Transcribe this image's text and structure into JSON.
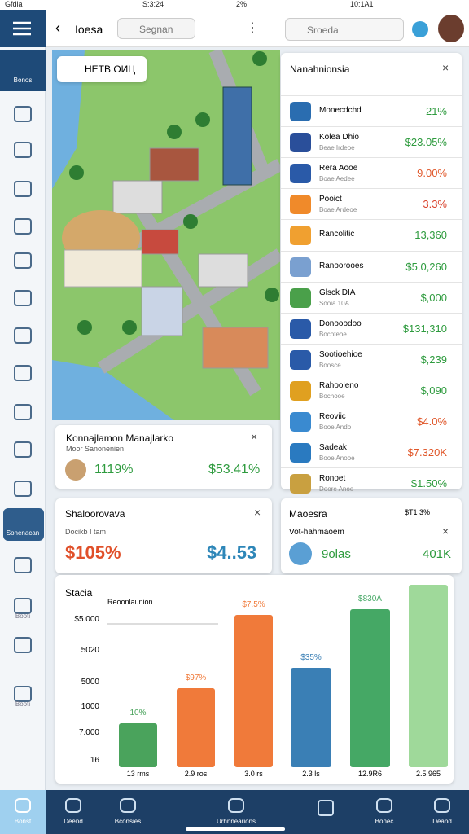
{
  "status": {
    "left_carrier": "Gfdia",
    "left_time": "S:3:24",
    "left_battery": "2%",
    "right_time": "10:1A1"
  },
  "sidebar": {
    "labels": [
      "Bonos",
      "Sonenacan",
      "Booti",
      "Booti"
    ]
  },
  "left_pane": {
    "title": "Ioesa",
    "search": "Segnan",
    "map_label": "HETB ОИЦ",
    "card": {
      "title": "Konnajlamon Manajlarko",
      "subtitle": "Moor Sanonenien",
      "stat_a": "1119%",
      "stat_b": "$53.41%"
    }
  },
  "right_pane": {
    "search": "Sroeda",
    "panel": {
      "title": "Nanahnionsia",
      "rows": [
        {
          "name": "Monecdchd",
          "value": "21%",
          "color": "#2e9b3e"
        },
        {
          "name": "Kolea Dhio",
          "sub": "Beae Irdeoe",
          "value": "$23.05%",
          "color": "#2e9b3e"
        },
        {
          "name": "Rera Aooe",
          "sub": "Boae Aedee",
          "value": "9.00%",
          "color": "#e0572a"
        },
        {
          "name": "Pooict",
          "sub": "Boae Ardeoe",
          "value": "3.3%",
          "color": "#d9402a"
        },
        {
          "name": "Rancolitic",
          "value": "13,360",
          "color": "#2e9b3e"
        },
        {
          "name": "Ranoorooes",
          "value": "$5.0,260",
          "color": "#2e9b3e"
        },
        {
          "name": "Glsck DIA",
          "sub": "Sooia 10A",
          "value": "$,000",
          "color": "#2e9b3e"
        },
        {
          "name": "Donooodoo",
          "sub": "Bocoteoe",
          "value": "$131,310",
          "color": "#2e9b3e"
        },
        {
          "name": "Sootioehioe",
          "sub": "Boosce",
          "value": "$,239",
          "color": "#2e9b3e"
        },
        {
          "name": "Rahooleno",
          "sub": "Bochooe",
          "value": "$,090",
          "color": "#2e9b3e"
        },
        {
          "name": "Reoviic",
          "sub": "Booe Ando",
          "value": "$4.0%",
          "color": "#e0572a"
        },
        {
          "name": "Sadeak",
          "sub": "Booe Anooe",
          "value": "$7.320K",
          "color": "#e0572a"
        },
        {
          "name": "Ronoet",
          "sub": "Doore Anoe",
          "value": "$1.50%",
          "color": "#2e9b3e"
        }
      ]
    }
  },
  "cards": {
    "left": {
      "title": "Shaloorovava",
      "subtitle": "Docikb I tam",
      "stat_a": "$105%",
      "stat_b": "$4..53"
    },
    "right": {
      "title": "Maoesra",
      "corner": "$T1 3%",
      "subtitle": "Vot-hahmaoem",
      "stat_a": "9olas",
      "stat_b": "401K"
    }
  },
  "chart_panel": {
    "title": "Stacia",
    "legend": "Reoonlaunion",
    "axis_labels": [
      "$5.000",
      "5020",
      "5000",
      "1000",
      "7.000",
      "16"
    ],
    "bars": [
      {
        "label": "10%",
        "category": "13 rms",
        "color": "#4aa35c"
      },
      {
        "label": "$97%",
        "category": "2.9 ros",
        "color": "#f07a3a"
      },
      {
        "label": "$7.5%",
        "category": "3.0 rs",
        "color": "#f07a3a"
      },
      {
        "label": "$35%",
        "category": "2.3 ls",
        "color": "#3a7fb5"
      },
      {
        "label": "$830A",
        "category": "12.9R6",
        "color": "#45a865"
      },
      {
        "category": "2.5 965",
        "color": "#9fd99a"
      }
    ]
  },
  "nav": {
    "labels": [
      "Bonst",
      "Deend",
      "Bconsies",
      "Urhnnearions",
      "Bonec",
      "Deand"
    ]
  }
}
